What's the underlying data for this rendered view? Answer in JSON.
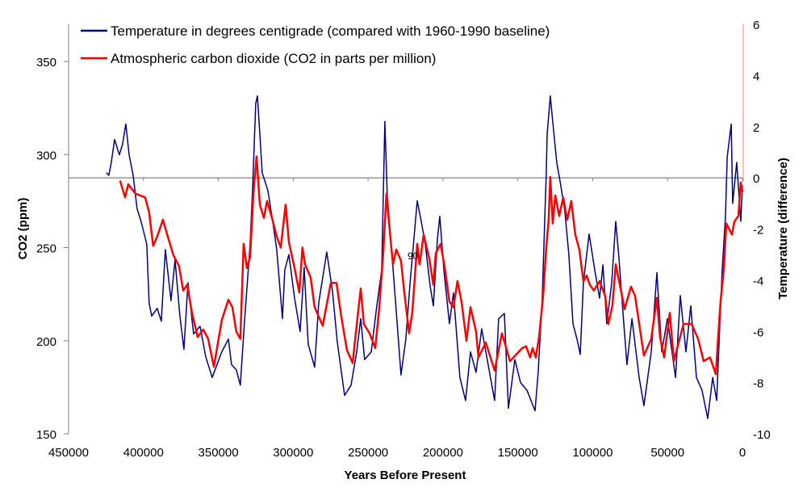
{
  "chart_data": {
    "type": "line",
    "title": "",
    "xlabel": "Years Before Present",
    "ylabel_left": "CO2 (ppm)",
    "ylabel_right": "Temperature (difference)",
    "xlim": [
      450000,
      0
    ],
    "ylim_left": [
      150,
      370
    ],
    "ylim_right": [
      -10,
      6
    ],
    "x_ticks": [
      "450000",
      "400000",
      "350000",
      "300000",
      "250000",
      "200000",
      "150000",
      "100000",
      "50000",
      "0"
    ],
    "x_tick_values": [
      450000,
      400000,
      350000,
      300000,
      250000,
      200000,
      150000,
      100000,
      50000,
      0
    ],
    "y_left_ticks": [
      "150",
      "200",
      "250",
      "300",
      "350"
    ],
    "y_left_tick_values": [
      150,
      200,
      250,
      300,
      350
    ],
    "y_right_ticks": [
      "-10",
      "-8",
      "-6",
      "-4",
      "-2",
      "0",
      "2",
      "4",
      "6"
    ],
    "y_right_tick_values": [
      -10,
      -8,
      -6,
      -4,
      -2,
      0,
      2,
      4,
      6
    ],
    "grid": false,
    "legend_placement": "top-left",
    "baseline_temperature": 0,
    "annotations": [
      {
        "text": "90",
        "x": 220000,
        "y_co2": 246
      }
    ],
    "series": [
      {
        "name": "Temperature in degrees centigrade (compared with 1960-1990 baseline)",
        "axis": "right",
        "color": "#000080",
        "points": [
          [
            424700,
            0.2
          ],
          [
            423100,
            0.1
          ],
          [
            421500,
            0.6
          ],
          [
            419300,
            1.5
          ],
          [
            416100,
            0.9
          ],
          [
            414000,
            1.3
          ],
          [
            411800,
            2.1
          ],
          [
            409600,
            0.9
          ],
          [
            406900,
            0.1
          ],
          [
            404300,
            -1.2
          ],
          [
            401600,
            -1.7
          ],
          [
            397800,
            -2.6
          ],
          [
            396200,
            -4.9
          ],
          [
            394500,
            -5.4
          ],
          [
            390800,
            -5.1
          ],
          [
            388100,
            -5.6
          ],
          [
            385400,
            -2.8
          ],
          [
            381600,
            -4.8
          ],
          [
            378900,
            -3.2
          ],
          [
            375700,
            -5.4
          ],
          [
            373000,
            -6.7
          ],
          [
            370300,
            -4.1
          ],
          [
            366500,
            -6.1
          ],
          [
            362200,
            -5.8
          ],
          [
            358400,
            -7.0
          ],
          [
            354100,
            -7.8
          ],
          [
            347700,
            -6.8
          ],
          [
            343300,
            -6.3
          ],
          [
            341200,
            -7.3
          ],
          [
            338000,
            -7.5
          ],
          [
            335300,
            -8.1
          ],
          [
            332600,
            -5.7
          ],
          [
            328800,
            -2.6
          ],
          [
            327200,
            -0.5
          ],
          [
            325000,
            2.9
          ],
          [
            323900,
            3.2
          ],
          [
            322300,
            1.7
          ],
          [
            320700,
            0.2
          ],
          [
            316900,
            -0.5
          ],
          [
            313700,
            -1.7
          ],
          [
            311000,
            -2.8
          ],
          [
            307200,
            -5.5
          ],
          [
            305600,
            -3.6
          ],
          [
            302900,
            -3.0
          ],
          [
            299100,
            -4.7
          ],
          [
            295400,
            -6.0
          ],
          [
            292700,
            -3.5
          ],
          [
            290000,
            -6.5
          ],
          [
            285700,
            -7.4
          ],
          [
            283000,
            -4.9
          ],
          [
            277600,
            -2.9
          ],
          [
            273800,
            -4.4
          ],
          [
            270600,
            -6.4
          ],
          [
            265700,
            -8.5
          ],
          [
            261400,
            -8.1
          ],
          [
            257600,
            -6.8
          ],
          [
            254900,
            -5.5
          ],
          [
            252300,
            -7.1
          ],
          [
            247900,
            -6.8
          ],
          [
            244200,
            -5.0
          ],
          [
            240900,
            -3.6
          ],
          [
            238800,
            2.2
          ],
          [
            237200,
            -0.7
          ],
          [
            233400,
            -3.5
          ],
          [
            230200,
            -6.0
          ],
          [
            228000,
            -7.7
          ],
          [
            224800,
            -6.3
          ],
          [
            222100,
            -4.2
          ],
          [
            217200,
            -0.9
          ],
          [
            214500,
            -1.7
          ],
          [
            211800,
            -2.6
          ],
          [
            208600,
            -4.2
          ],
          [
            206400,
            -5.0
          ],
          [
            203700,
            -2.4
          ],
          [
            202100,
            -1.5
          ],
          [
            199400,
            -3.6
          ],
          [
            195700,
            -5.7
          ],
          [
            193000,
            -4.5
          ],
          [
            188700,
            -7.8
          ],
          [
            184900,
            -8.7
          ],
          [
            181600,
            -6.8
          ],
          [
            177900,
            -7.6
          ],
          [
            174100,
            -5.9
          ],
          [
            169800,
            -7.3
          ],
          [
            165500,
            -8.7
          ],
          [
            162800,
            -5.5
          ],
          [
            159000,
            -5.3
          ],
          [
            156300,
            -9.0
          ],
          [
            152000,
            -7.1
          ],
          [
            148200,
            -8.0
          ],
          [
            143900,
            -8.3
          ],
          [
            138500,
            -9.1
          ],
          [
            136400,
            -7.6
          ],
          [
            133700,
            -4.7
          ],
          [
            131000,
            0.2
          ],
          [
            130400,
            1.7
          ],
          [
            128300,
            3.2
          ],
          [
            126700,
            2.2
          ],
          [
            124000,
            0.6
          ],
          [
            121300,
            -0.3
          ],
          [
            118600,
            -1.3
          ],
          [
            115900,
            -3.0
          ],
          [
            113200,
            -5.7
          ],
          [
            110500,
            -6.3
          ],
          [
            108300,
            -6.9
          ],
          [
            106200,
            -4.1
          ],
          [
            102400,
            -2.2
          ],
          [
            98600,
            -3.6
          ],
          [
            95400,
            -4.7
          ],
          [
            93200,
            -3.4
          ],
          [
            90600,
            -5.7
          ],
          [
            87300,
            -4.1
          ],
          [
            84600,
            -1.7
          ],
          [
            82500,
            -3.1
          ],
          [
            79200,
            -5.7
          ],
          [
            77100,
            -7.3
          ],
          [
            73800,
            -5.5
          ],
          [
            69000,
            -7.8
          ],
          [
            65800,
            -8.9
          ],
          [
            60900,
            -6.8
          ],
          [
            57100,
            -3.7
          ],
          [
            53900,
            -6.8
          ],
          [
            50100,
            -5.5
          ],
          [
            44700,
            -7.8
          ],
          [
            41500,
            -4.6
          ],
          [
            37700,
            -6.8
          ],
          [
            34500,
            -5.0
          ],
          [
            30700,
            -7.8
          ],
          [
            27000,
            -8.3
          ],
          [
            23200,
            -9.4
          ],
          [
            19900,
            -7.8
          ],
          [
            17200,
            -8.7
          ],
          [
            15100,
            -5.7
          ],
          [
            13500,
            -3.6
          ],
          [
            11300,
            -1.5
          ],
          [
            10200,
            0.8
          ],
          [
            7500,
            2.1
          ],
          [
            6500,
            -1.0
          ],
          [
            3800,
            0.6
          ],
          [
            1100,
            -1.7
          ],
          [
            0,
            -0.3
          ]
        ]
      },
      {
        "name": "Atmospheric carbon dioxide (CO2 in parts per million)",
        "axis": "left",
        "color": "#ff0000",
        "points": [
          [
            415600,
            286
          ],
          [
            412300,
            277
          ],
          [
            410200,
            284
          ],
          [
            405300,
            279
          ],
          [
            398900,
            277
          ],
          [
            396200,
            269
          ],
          [
            393500,
            251
          ],
          [
            390800,
            256
          ],
          [
            387000,
            265
          ],
          [
            382700,
            253
          ],
          [
            380000,
            246
          ],
          [
            376200,
            240
          ],
          [
            373500,
            227
          ],
          [
            370800,
            230
          ],
          [
            367600,
            215
          ],
          [
            363800,
            202
          ],
          [
            360100,
            206
          ],
          [
            356800,
            201
          ],
          [
            353000,
            186
          ],
          [
            347700,
            211
          ],
          [
            343300,
            222
          ],
          [
            340600,
            218
          ],
          [
            338000,
            205
          ],
          [
            335300,
            201
          ],
          [
            333100,
            252
          ],
          [
            330900,
            239
          ],
          [
            328800,
            245
          ],
          [
            326600,
            279
          ],
          [
            324500,
            299
          ],
          [
            322300,
            273
          ],
          [
            319600,
            266
          ],
          [
            317500,
            275
          ],
          [
            314200,
            266
          ],
          [
            311000,
            256
          ],
          [
            308300,
            250
          ],
          [
            305100,
            273
          ],
          [
            302900,
            253
          ],
          [
            299100,
            239
          ],
          [
            295900,
            226
          ],
          [
            293800,
            250
          ],
          [
            292100,
            241
          ],
          [
            288400,
            234
          ],
          [
            285700,
            218
          ],
          [
            280300,
            208
          ],
          [
            274900,
            231
          ],
          [
            271100,
            231
          ],
          [
            267900,
            213
          ],
          [
            264100,
            195
          ],
          [
            260300,
            188
          ],
          [
            257100,
            212
          ],
          [
            254900,
            228
          ],
          [
            252800,
            209
          ],
          [
            249000,
            204
          ],
          [
            245200,
            196
          ],
          [
            242600,
            217
          ],
          [
            239900,
            247
          ],
          [
            237700,
            279
          ],
          [
            235500,
            259
          ],
          [
            233400,
            241
          ],
          [
            231200,
            249
          ],
          [
            228000,
            243
          ],
          [
            225800,
            226
          ],
          [
            222600,
            204
          ],
          [
            220500,
            215
          ],
          [
            217200,
            252
          ],
          [
            215600,
            241
          ],
          [
            212900,
            257
          ],
          [
            209100,
            244
          ],
          [
            206400,
            230
          ],
          [
            204800,
            247
          ],
          [
            201600,
            252
          ],
          [
            198900,
            240
          ],
          [
            195700,
            221
          ],
          [
            193000,
            218
          ],
          [
            190300,
            232
          ],
          [
            187600,
            221
          ],
          [
            184300,
            200
          ],
          [
            181600,
            218
          ],
          [
            177900,
            205
          ],
          [
            176300,
            191
          ],
          [
            171400,
            199
          ],
          [
            165500,
            184
          ],
          [
            160600,
            204
          ],
          [
            155200,
            189
          ],
          [
            147100,
            196
          ],
          [
            144500,
            197
          ],
          [
            141800,
            191
          ],
          [
            140100,
            196
          ],
          [
            138000,
            191
          ],
          [
            135800,
            202
          ],
          [
            133100,
            224
          ],
          [
            131000,
            250
          ],
          [
            129400,
            265
          ],
          [
            128300,
            288
          ],
          [
            126700,
            263
          ],
          [
            125000,
            278
          ],
          [
            122400,
            267
          ],
          [
            119700,
            277
          ],
          [
            117000,
            265
          ],
          [
            114300,
            275
          ],
          [
            111600,
            257
          ],
          [
            108900,
            249
          ],
          [
            106200,
            232
          ],
          [
            104000,
            235
          ],
          [
            101900,
            230
          ],
          [
            99200,
            227
          ],
          [
            95400,
            232
          ],
          [
            91600,
            224
          ],
          [
            89500,
            209
          ],
          [
            86800,
            219
          ],
          [
            84600,
            241
          ],
          [
            81400,
            228
          ],
          [
            78700,
            217
          ],
          [
            74400,
            229
          ],
          [
            71700,
            224
          ],
          [
            65800,
            192
          ],
          [
            60900,
            201
          ],
          [
            57100,
            223
          ],
          [
            55000,
            202
          ],
          [
            52300,
            191
          ],
          [
            48500,
            215
          ],
          [
            45800,
            189
          ],
          [
            42000,
            201
          ],
          [
            39300,
            209
          ],
          [
            34000,
            209
          ],
          [
            29600,
            201
          ],
          [
            25900,
            189
          ],
          [
            21600,
            191
          ],
          [
            17800,
            182
          ],
          [
            16200,
            202
          ],
          [
            14600,
            221
          ],
          [
            12400,
            239
          ],
          [
            10800,
            263
          ],
          [
            7000,
            257
          ],
          [
            5400,
            264
          ],
          [
            2700,
            267
          ],
          [
            1100,
            285
          ],
          [
            0,
            280
          ]
        ],
        "recent_points": [
          [
            0,
            285
          ],
          [
            0,
            370
          ]
        ],
        "recent_color": "#ff8080"
      }
    ]
  }
}
